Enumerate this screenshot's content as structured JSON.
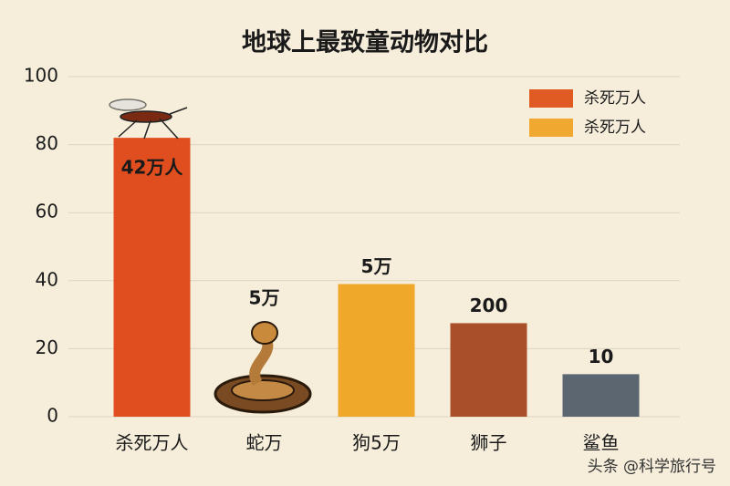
{
  "chart_data": {
    "type": "bar",
    "title": "地球上最致童动物对比",
    "categories": [
      "杀死万人",
      "蛇万",
      "狗5万",
      "狮子",
      "鲨鱼"
    ],
    "values": [
      82,
      null,
      39,
      27.5,
      12.5
    ],
    "colors": [
      "#e04e1f",
      "#8a5a2a",
      "#f0a82a",
      "#a9502a",
      "#5b6670"
    ],
    "bar_labels": [
      "42万人",
      "5万",
      "5万",
      "200",
      "10"
    ],
    "legend": [
      {
        "name": "杀死万人",
        "color": "#e05a24"
      },
      {
        "name": "杀死万人",
        "color": "#f0a830"
      }
    ],
    "legend_position": "upper right",
    "ylim": [
      0,
      100
    ],
    "yticks": [
      0,
      20,
      40,
      60,
      80,
      100
    ],
    "grid": true,
    "watermark": "头条 @科学旅行号"
  }
}
